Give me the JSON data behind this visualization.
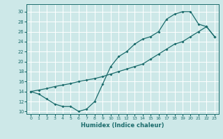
{
  "xlabel": "Humidex (Indice chaleur)",
  "bg_color": "#cde8e8",
  "line_color": "#1a6b6b",
  "grid_color": "#ffffff",
  "xlim": [
    -0.5,
    23.5
  ],
  "ylim": [
    9.5,
    31.5
  ],
  "xticks": [
    0,
    1,
    2,
    3,
    4,
    5,
    6,
    7,
    8,
    9,
    10,
    11,
    12,
    13,
    14,
    15,
    16,
    17,
    18,
    19,
    20,
    21,
    22,
    23
  ],
  "yticks": [
    10,
    12,
    14,
    16,
    18,
    20,
    22,
    24,
    26,
    28,
    30
  ],
  "line1_x": [
    0,
    1,
    2,
    3,
    4,
    5,
    6,
    7,
    8,
    9,
    10,
    11,
    12,
    13,
    14,
    15,
    16,
    17,
    18,
    19,
    20,
    21,
    22,
    23
  ],
  "line1_y": [
    14,
    13.5,
    12.5,
    11.5,
    11,
    11,
    10,
    10.5,
    12,
    15.5,
    19,
    21,
    22,
    23.5,
    24.5,
    25,
    26,
    28.5,
    29.5,
    30,
    30,
    27.5,
    27,
    25
  ],
  "line2_x": [
    0,
    1,
    2,
    3,
    4,
    5,
    6,
    7,
    8,
    9,
    10,
    11,
    12,
    13,
    14,
    15,
    16,
    17,
    18,
    19,
    20,
    21,
    22,
    23
  ],
  "line2_y": [
    14,
    14.3,
    14.6,
    15,
    15.3,
    15.6,
    16,
    16.3,
    16.6,
    17,
    17.5,
    18,
    18.5,
    19,
    19.5,
    20.5,
    21.5,
    22.5,
    23.5,
    24,
    25,
    26,
    27,
    25
  ]
}
